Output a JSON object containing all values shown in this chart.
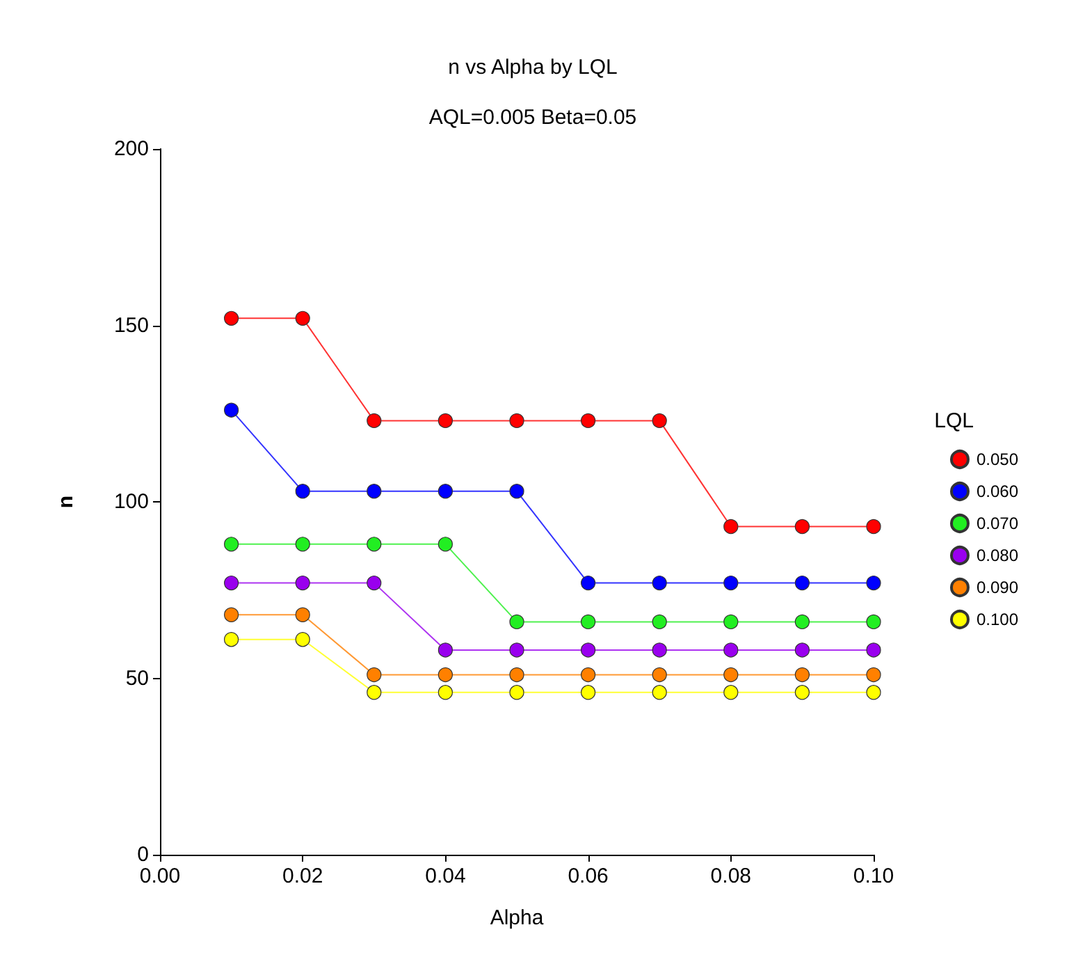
{
  "chart_data": {
    "type": "line",
    "title": "n vs Alpha by LQL",
    "subtitle": "AQL=0.005 Beta=0.05",
    "xlabel": "Alpha",
    "ylabel": "n",
    "legend_title": "LQL",
    "x": [
      0.01,
      0.02,
      0.03,
      0.04,
      0.05,
      0.06,
      0.07,
      0.08,
      0.09,
      0.1
    ],
    "series": [
      {
        "name": "0.050",
        "color": "#ff0000",
        "values": [
          152,
          152,
          123,
          123,
          123,
          123,
          123,
          93,
          93,
          93
        ]
      },
      {
        "name": "0.060",
        "color": "#0000ff",
        "values": [
          126,
          103,
          103,
          103,
          103,
          77,
          77,
          77,
          77,
          77
        ]
      },
      {
        "name": "0.070",
        "color": "#22ee22",
        "values": [
          88,
          88,
          88,
          88,
          66,
          66,
          66,
          66,
          66,
          66
        ]
      },
      {
        "name": "0.080",
        "color": "#9900ee",
        "values": [
          77,
          77,
          77,
          58,
          58,
          58,
          58,
          58,
          58,
          58
        ]
      },
      {
        "name": "0.090",
        "color": "#ff8000",
        "values": [
          68,
          68,
          51,
          51,
          51,
          51,
          51,
          51,
          51,
          51
        ]
      },
      {
        "name": "0.100",
        "color": "#ffff00",
        "values": [
          61,
          61,
          46,
          46,
          46,
          46,
          46,
          46,
          46,
          46
        ]
      }
    ],
    "xlim": [
      0,
      0.1
    ],
    "xticks": [
      {
        "value": 0,
        "label": "0.00"
      },
      {
        "value": 0.02,
        "label": "0.02"
      },
      {
        "value": 0.04,
        "label": "0.04"
      },
      {
        "value": 0.06,
        "label": "0.06"
      },
      {
        "value": 0.08,
        "label": "0.08"
      },
      {
        "value": 0.1,
        "label": "0.10"
      }
    ],
    "ylim": [
      0,
      200
    ],
    "yticks": [
      0,
      50,
      100,
      150,
      200
    ],
    "grid": false,
    "legend": "right",
    "marker": "circle",
    "line_style": "solid"
  }
}
